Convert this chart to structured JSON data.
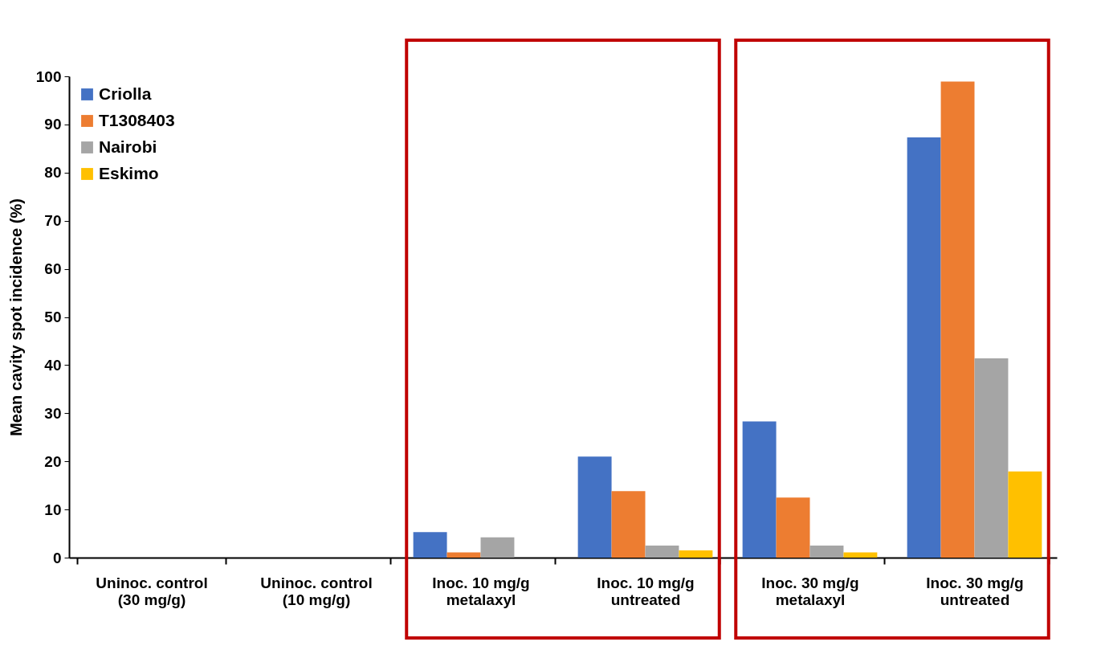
{
  "chart_data": {
    "type": "bar",
    "ylabel": "Mean cavity spot incidence (%)",
    "categories": [
      "Uninoc. control\n(30 mg/g)",
      "Uninoc. control\n(10 mg/g)",
      "Inoc. 10 mg/g\nmetalaxyl",
      "Inoc. 10 mg/g\nuntreated",
      "Inoc. 30 mg/g\nmetalaxyl",
      "Inoc. 30 mg/g\nuntreated"
    ],
    "series": [
      {
        "name": "Criolla",
        "color": "#4472c4",
        "values": [
          0,
          0,
          5.3,
          21.0,
          28.3,
          87.3
        ]
      },
      {
        "name": "T1308403",
        "color": "#ed7d31",
        "values": [
          0,
          0,
          1.1,
          13.8,
          12.5,
          98.9
        ]
      },
      {
        "name": "Nairobi",
        "color": "#a5a5a5",
        "values": [
          0,
          0,
          4.2,
          2.5,
          2.5,
          41.4
        ]
      },
      {
        "name": "Eskimo",
        "color": "#ffc000",
        "values": [
          0,
          0,
          0,
          1.5,
          1.1,
          17.9
        ]
      }
    ],
    "ylim": [
      0,
      100
    ],
    "yticks": [
      0,
      10,
      20,
      30,
      40,
      50,
      60,
      70,
      80,
      90,
      100
    ],
    "grid": false,
    "legend": "top left"
  }
}
